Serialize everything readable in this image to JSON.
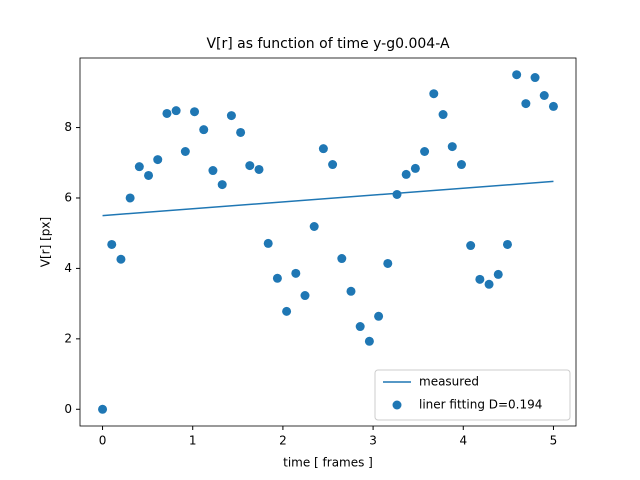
{
  "chart_data": {
    "type": "scatter",
    "title": "V[r] as function of time y-g0.004-A",
    "x_label": "time [ frames ]",
    "y_label": "V[r] [px]",
    "xlim": [
      -0.25,
      5.25
    ],
    "ylim": [
      -0.475,
      9.975
    ],
    "xticks": [
      0,
      1,
      2,
      3,
      4,
      5
    ],
    "yticks": [
      0,
      2,
      4,
      6,
      8
    ],
    "legend": "lower right",
    "series": [
      {
        "name": "measured",
        "type": "line",
        "color": "#1f77b4",
        "x": [
          0,
          5
        ],
        "values": [
          5.5,
          6.47
        ]
      },
      {
        "name": "liner fitting D=0.194",
        "type": "scatter",
        "color": "#1f77b4",
        "x": [
          0,
          0.102,
          0.204,
          0.306,
          0.408,
          0.51,
          0.612,
          0.714,
          0.816,
          0.918,
          1.02,
          1.122,
          1.224,
          1.327,
          1.429,
          1.531,
          1.633,
          1.735,
          1.837,
          1.939,
          2.041,
          2.143,
          2.245,
          2.347,
          2.449,
          2.551,
          2.653,
          2.755,
          2.857,
          2.959,
          3.061,
          3.163,
          3.265,
          3.367,
          3.469,
          3.571,
          3.673,
          3.776,
          3.878,
          3.98,
          4.082,
          4.184,
          4.286,
          4.388,
          4.49,
          4.592,
          4.694,
          4.796,
          4.898,
          5
        ],
        "values": [
          0,
          4.68,
          4.26,
          6.0,
          6.89,
          6.64,
          7.09,
          8.4,
          8.48,
          7.32,
          8.45,
          7.94,
          6.78,
          6.38,
          8.34,
          7.86,
          6.92,
          6.81,
          4.71,
          3.72,
          2.78,
          3.86,
          3.23,
          5.19,
          7.4,
          6.95,
          4.28,
          3.35,
          2.35,
          1.93,
          2.64,
          4.14,
          6.1,
          6.67,
          6.84,
          7.32,
          8.96,
          8.37,
          7.46,
          6.95,
          4.65,
          3.69,
          3.55,
          3.83,
          4.68,
          9.5,
          8.68,
          9.42,
          8.91,
          8.6
        ]
      }
    ]
  }
}
